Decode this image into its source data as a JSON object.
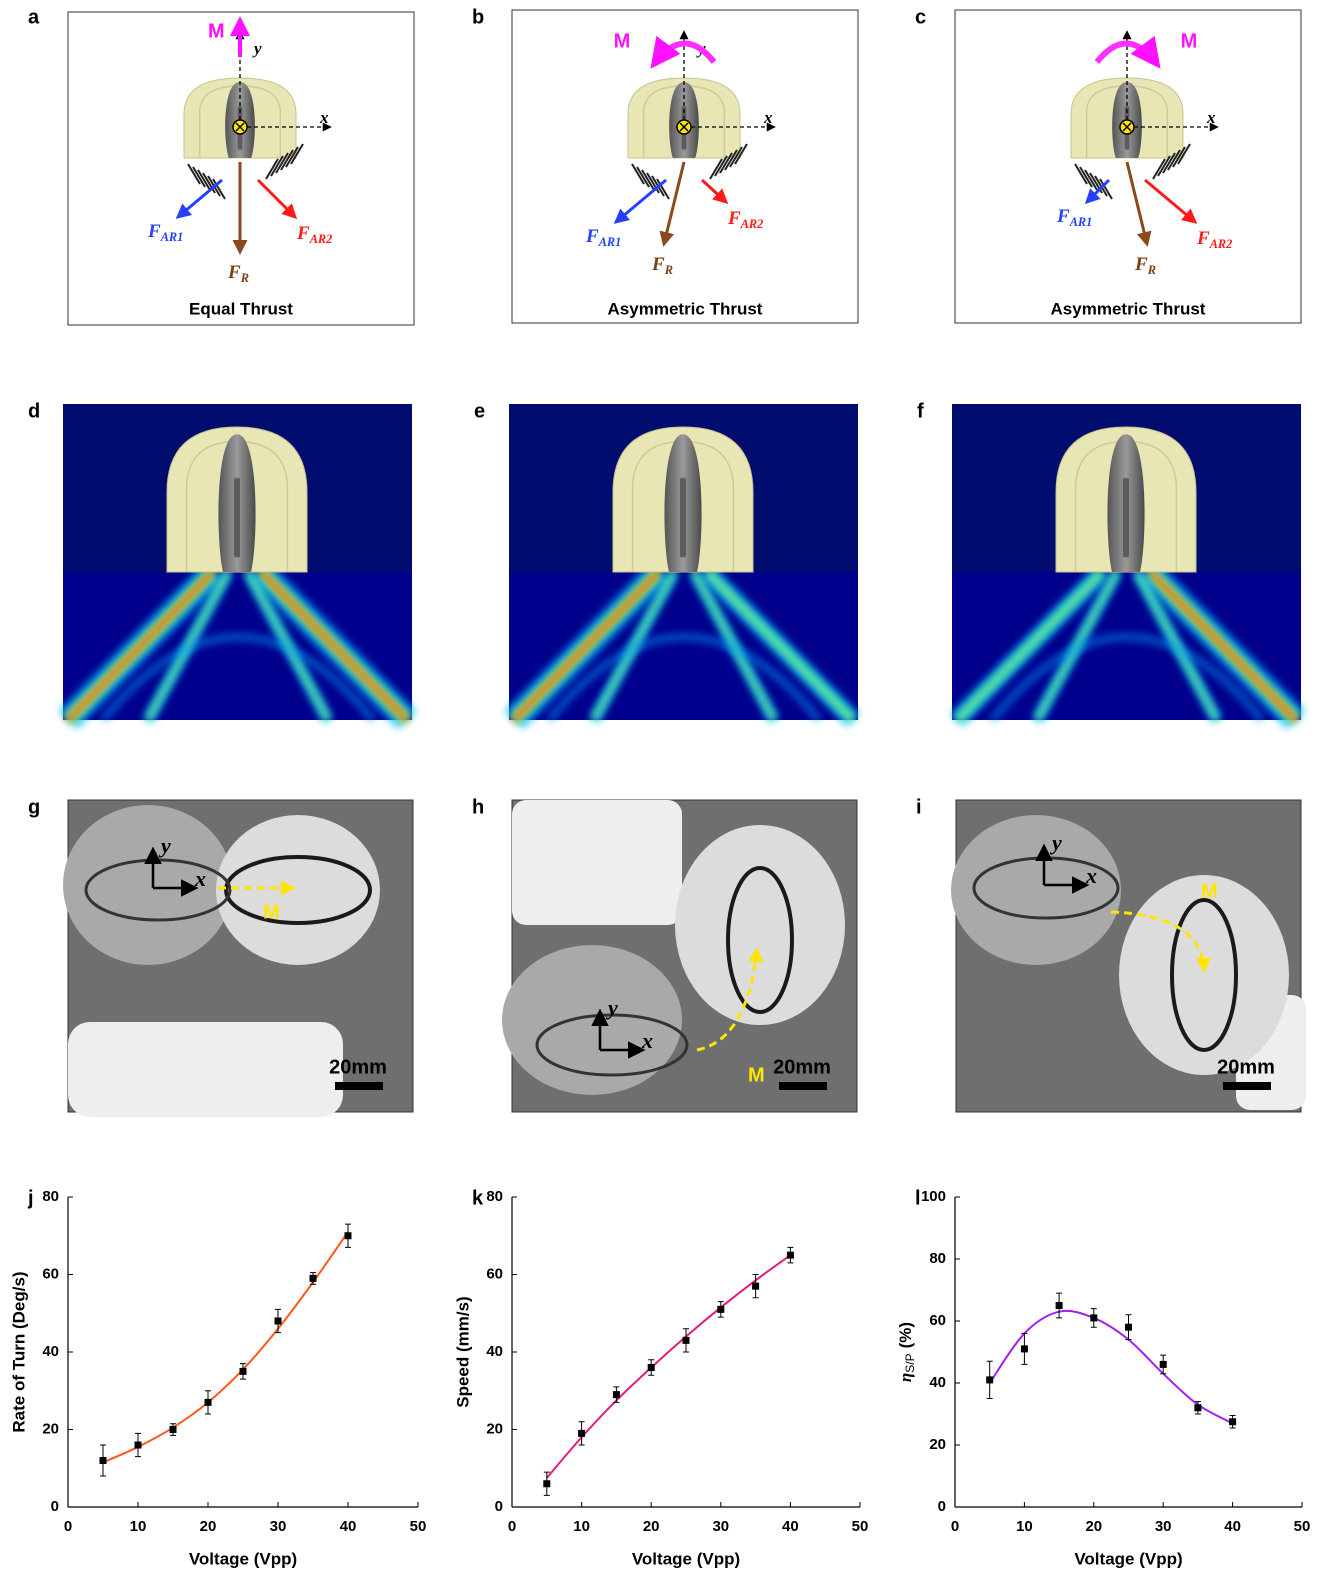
{
  "diagrams": [
    {
      "label": "a",
      "caption": "Equal Thrust",
      "moment": "M",
      "x": "x",
      "y": "y",
      "forces": [
        {
          "main": "F",
          "sub": "AR1"
        },
        {
          "main": "F",
          "sub": "AR2"
        },
        {
          "main": "F",
          "sub": "R"
        }
      ]
    },
    {
      "label": "b",
      "caption": "Asymmetric Thrust",
      "moment": "M",
      "x": "x",
      "y": "y",
      "forces": [
        {
          "main": "F",
          "sub": "AR1"
        },
        {
          "main": "F",
          "sub": "AR2"
        },
        {
          "main": "F",
          "sub": "R"
        }
      ]
    },
    {
      "label": "c",
      "caption": "Asymmetric Thrust",
      "moment": "M",
      "x": "x",
      "y": "y",
      "forces": [
        {
          "main": "F",
          "sub": "AR1"
        },
        {
          "main": "F",
          "sub": "AR2"
        },
        {
          "main": "F",
          "sub": "R"
        }
      ]
    }
  ],
  "simulations": [
    {
      "label": "d"
    },
    {
      "label": "e"
    },
    {
      "label": "f"
    }
  ],
  "photos": [
    {
      "label": "g",
      "x": "x",
      "y": "y",
      "moment": "M",
      "scale": "20mm"
    },
    {
      "label": "h",
      "x": "x",
      "y": "y",
      "moment": "M",
      "scale": "20mm"
    },
    {
      "label": "i",
      "x": "x",
      "y": "y",
      "moment": "M",
      "scale": "20mm"
    }
  ],
  "chart_data": [
    {
      "type": "line",
      "panel": "j",
      "xlabel": "Voltage (Vpp)",
      "ylabel": "Rate of Turn (Deg/s)",
      "x": [
        5,
        10,
        15,
        20,
        25,
        30,
        35,
        40
      ],
      "values": [
        12,
        16,
        20,
        27,
        35,
        48,
        59,
        70
      ],
      "errors": [
        4,
        3,
        1.5,
        3,
        2,
        3,
        1.5,
        3
      ],
      "fit": [
        11.5,
        15.5,
        20.5,
        27,
        35.5,
        46,
        58,
        71
      ],
      "color": "#ff5a14",
      "marker_color": "#000000",
      "xlim": [
        0,
        50
      ],
      "xticks": [
        0,
        10,
        20,
        30,
        40,
        50
      ],
      "ylim": [
        0,
        80
      ],
      "yticks": [
        0,
        20,
        40,
        60,
        80
      ]
    },
    {
      "type": "line",
      "panel": "k",
      "xlabel": "Voltage (Vpp)",
      "ylabel": "Speed (mm/s)",
      "x": [
        5,
        10,
        15,
        20,
        25,
        30,
        35,
        40
      ],
      "values": [
        6,
        19,
        29,
        36,
        43,
        51,
        57,
        65
      ],
      "errors": [
        3,
        3,
        2,
        2,
        3,
        2,
        3,
        2
      ],
      "fit": [
        7.5,
        18,
        27.5,
        36,
        44,
        51.5,
        58.5,
        65
      ],
      "color": "#e6197f",
      "marker_color": "#000000",
      "xlim": [
        0,
        50
      ],
      "xticks": [
        0,
        10,
        20,
        30,
        40,
        50
      ],
      "ylim": [
        0,
        80
      ],
      "yticks": [
        0,
        20,
        40,
        60,
        80
      ]
    },
    {
      "type": "line",
      "panel": "l",
      "xlabel": "Voltage (Vpp)",
      "ylabel": "η",
      "ylabel_sub": "S/P",
      "ylabel_unit": "(%)",
      "x": [
        5,
        10,
        15,
        20,
        25,
        30,
        35,
        40
      ],
      "values": [
        41,
        51,
        65,
        61,
        58,
        46,
        32,
        27.5
      ],
      "errors": [
        6,
        5,
        4,
        3,
        4,
        3,
        2,
        2
      ],
      "fit": [
        40,
        56,
        63,
        61,
        54,
        43,
        33,
        27
      ],
      "color": "#a020f0",
      "marker_color": "#000000",
      "xlim": [
        0,
        50
      ],
      "xticks": [
        0,
        10,
        20,
        30,
        40,
        50
      ],
      "ylim": [
        0,
        100
      ],
      "yticks": [
        0,
        20,
        40,
        60,
        80,
        100
      ]
    }
  ]
}
